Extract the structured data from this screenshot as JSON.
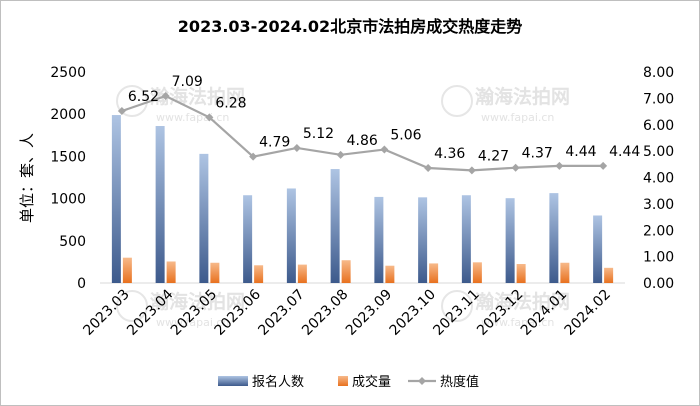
{
  "chart_data": {
    "type": "bar",
    "title": "2023.03-2024.02北京市法拍房成交热度走势",
    "ylabel": "单位：套、人",
    "categories": [
      "2023.03",
      "2023.04",
      "2023.05",
      "2023.06",
      "2023.07",
      "2023.08",
      "2023.09",
      "2023.10",
      "2023.11",
      "2023.12",
      "2024.01",
      "2024.02"
    ],
    "y_left": {
      "min": 0,
      "max": 2500,
      "ticks": [
        "0",
        "500",
        "1000",
        "1500",
        "2000",
        "2500"
      ]
    },
    "y_right": {
      "min": 0,
      "max": 8,
      "ticks": [
        "0.00",
        "1.00",
        "2.00",
        "3.00",
        "4.00",
        "5.00",
        "6.00",
        "7.00",
        "8.00"
      ]
    },
    "series": [
      {
        "name": "报名人数",
        "kind": "bar",
        "axis": "left",
        "color": "#4a6aa0",
        "values": [
          1990,
          1860,
          1530,
          1040,
          1120,
          1350,
          1020,
          1015,
          1040,
          1005,
          1065,
          800
        ]
      },
      {
        "name": "成交量",
        "kind": "bar",
        "axis": "left",
        "color": "#ed7d31",
        "values": [
          300,
          255,
          240,
          210,
          218,
          270,
          205,
          232,
          245,
          225,
          240,
          180
        ]
      },
      {
        "name": "热度值",
        "kind": "line",
        "axis": "right",
        "color": "#a5a5a5",
        "values": [
          6.52,
          7.09,
          6.28,
          4.79,
          5.12,
          4.86,
          5.06,
          4.36,
          4.27,
          4.37,
          4.44,
          4.44
        ],
        "labels": [
          "6.52",
          "7.09",
          "6.28",
          "4.79",
          "5.12",
          "4.86",
          "5.06",
          "4.36",
          "4.27",
          "4.37",
          "4.44",
          "4.44"
        ]
      }
    ],
    "legend_position": "bottom",
    "grid": false
  },
  "watermarks": [
    "瀚海法拍网",
    "www.fapai.cn"
  ]
}
